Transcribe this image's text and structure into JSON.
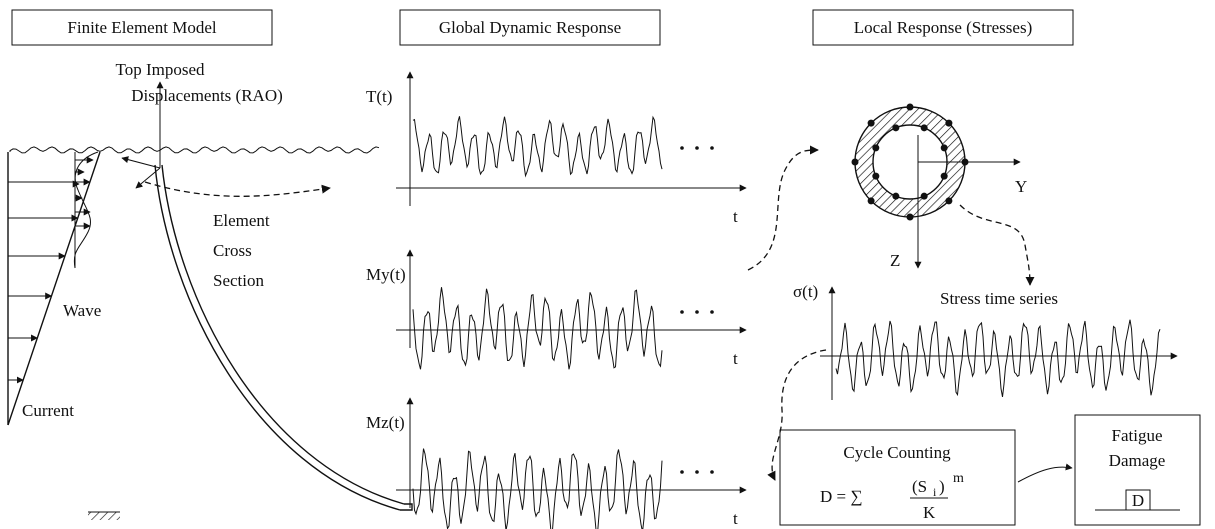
{
  "panels": [
    {
      "title": "Finite Element Model"
    },
    {
      "title": "Global Dynamic Response"
    },
    {
      "title": "Local Response (Stresses)"
    }
  ],
  "fe_model": {
    "displacement_label": [
      "Top Imposed",
      "Displacements (RAO)"
    ],
    "cross_section_label": [
      "Element",
      "Cross",
      "Section"
    ],
    "wave": "Wave",
    "current": "Current"
  },
  "global_response": {
    "plots": [
      {
        "label": "T(t)",
        "axis": "t"
      },
      {
        "label": "My(t)",
        "axis": "t"
      },
      {
        "label": "Mz(t)",
        "axis": "t"
      }
    ]
  },
  "local_response": {
    "y_axis": "Y",
    "z_axis": "Z",
    "stress_label": "σ(t)",
    "stress_caption": "Stress time series",
    "cycle_counting": {
      "title": "Cycle Counting",
      "formula": {
        "lhs": "D = ∑",
        "numerator_open": "(S",
        "subscript": "i",
        "numerator_close": ")",
        "exponent": "m",
        "denominator": "K"
      }
    },
    "fatigue": {
      "title": [
        "Fatigue",
        "Damage"
      ],
      "symbol": "D"
    }
  }
}
